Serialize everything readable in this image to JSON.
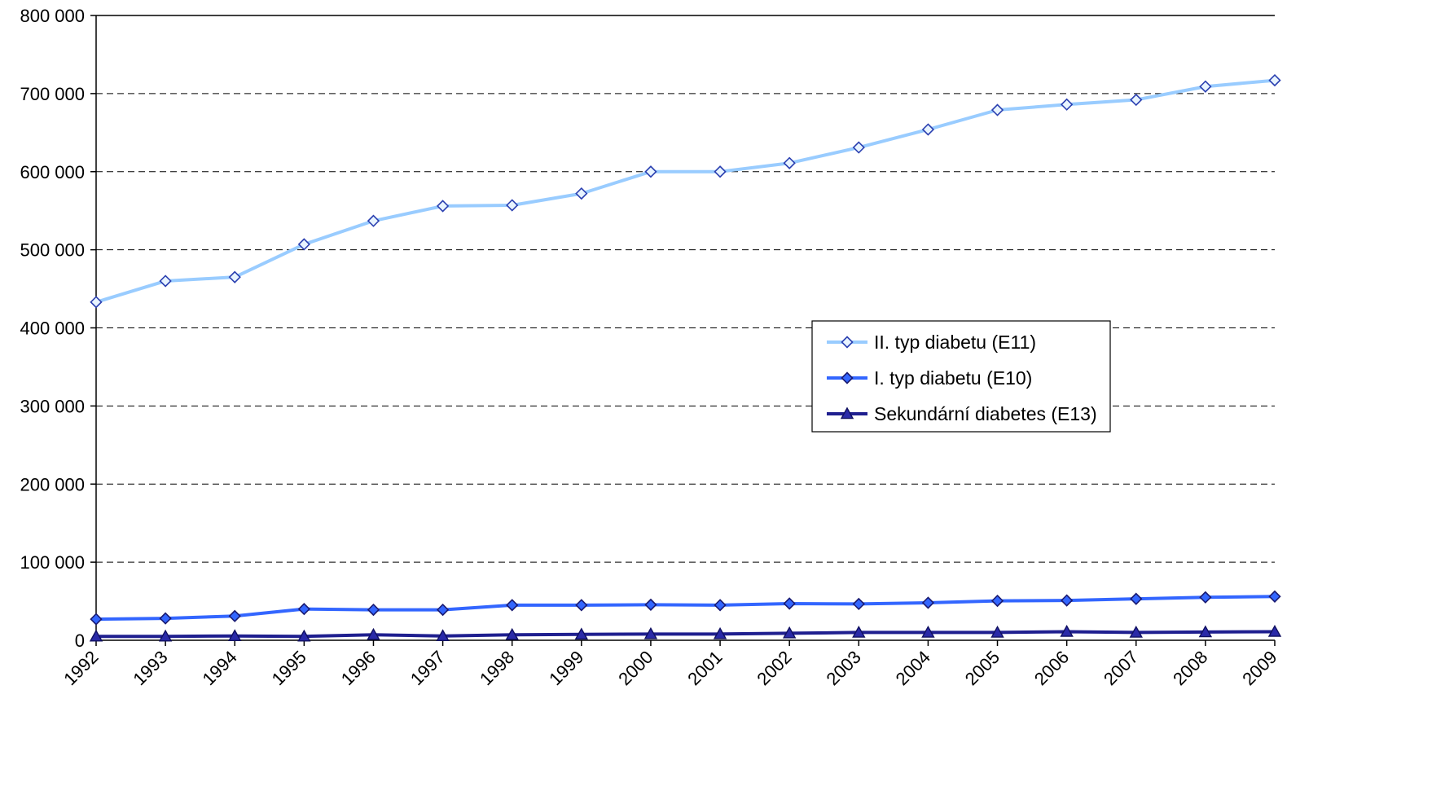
{
  "chart_data": {
    "type": "line",
    "title": "",
    "xlabel": "",
    "ylabel": "",
    "ylim": [
      0,
      800000
    ],
    "yticks": [
      0,
      100000,
      200000,
      300000,
      400000,
      500000,
      600000,
      700000,
      800000
    ],
    "ytick_labels": [
      "0",
      "100 000",
      "200 000",
      "300 000",
      "400 000",
      "500 000",
      "600 000",
      "700 000",
      "800 000"
    ],
    "categories": [
      "1992",
      "1993",
      "1994",
      "1995",
      "1996",
      "1997",
      "1998",
      "1999",
      "2000",
      "2001",
      "2002",
      "2003",
      "2004",
      "2005",
      "2006",
      "2007",
      "2008",
      "2009"
    ],
    "grid": "horizontal dashed",
    "legend_position": "center-right",
    "series": [
      {
        "name": "II. typ diabetu (E11)",
        "color": "#99ccff",
        "marker": "diamond-light",
        "values": [
          433000,
          460000,
          465000,
          507000,
          537000,
          556000,
          557000,
          572000,
          600000,
          600000,
          611000,
          631000,
          654000,
          679000,
          686000,
          692000,
          709000,
          717000
        ]
      },
      {
        "name": "I. typ diabetu (E10)",
        "color": "#3366ff",
        "marker": "diamond-dark",
        "values": [
          27000,
          28000,
          31000,
          40000,
          39000,
          39000,
          45000,
          45000,
          45500,
          45000,
          47000,
          46500,
          48000,
          50500,
          51000,
          53000,
          55000,
          56000
        ]
      },
      {
        "name": "Sekundární diabetes (E13)",
        "color": "#1f1f8f",
        "marker": "triangle",
        "values": [
          5000,
          5000,
          5500,
          5000,
          7000,
          5500,
          7000,
          7500,
          8000,
          8000,
          9000,
          10000,
          10000,
          10000,
          11000,
          10000,
          10500,
          11000
        ]
      }
    ]
  }
}
